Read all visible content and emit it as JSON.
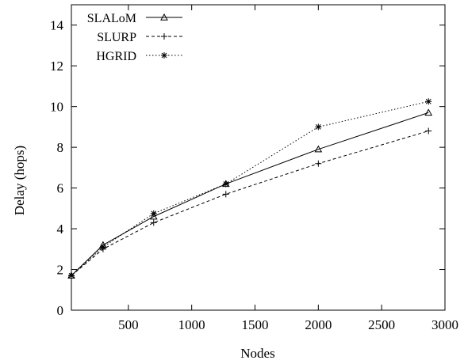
{
  "chart_data": {
    "type": "line",
    "xlabel": "Nodes",
    "ylabel": "Delay (hops)",
    "xlim": [
      50,
      3000
    ],
    "ylim": [
      0,
      15
    ],
    "xticks": [
      500,
      1000,
      1500,
      2000,
      2500,
      3000
    ],
    "yticks": [
      0,
      2,
      4,
      6,
      8,
      10,
      12,
      14
    ],
    "grid": false,
    "legend_position": "top-left",
    "x": [
      50,
      300,
      700,
      1270,
      2000,
      2870
    ],
    "series": [
      {
        "name": "SLALoM",
        "values": [
          1.7,
          3.2,
          4.6,
          6.2,
          7.9,
          9.7
        ],
        "marker": "triangle",
        "dash": "solid"
      },
      {
        "name": "SLURP",
        "values": [
          1.7,
          3.0,
          4.3,
          5.7,
          7.2,
          8.8
        ],
        "marker": "plus",
        "dash": "dashed"
      },
      {
        "name": "HGRID",
        "values": [
          1.7,
          3.1,
          4.75,
          6.2,
          9.0,
          10.25
        ],
        "marker": "star",
        "dash": "dotted"
      }
    ]
  }
}
